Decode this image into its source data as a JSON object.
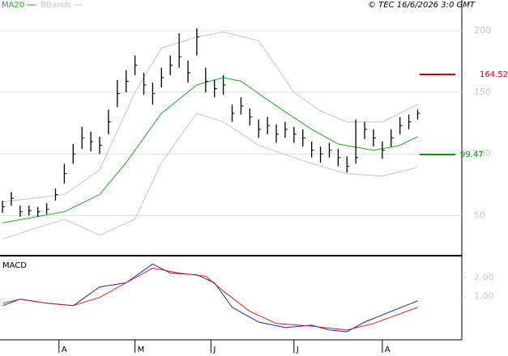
{
  "chart_data": [
    {
      "type": "ohlc",
      "credit": "© TEC 16/6/2026 3:0 GMT",
      "xlim": [
        -0.28,
        52
      ],
      "ylim": [
        18,
        225
      ],
      "yticks": [
        200,
        150,
        100,
        50
      ],
      "grid": true,
      "xticks": [
        {
          "value": 6.4,
          "label": "A"
        },
        {
          "value": 15,
          "label": "M"
        },
        {
          "value": 23.6,
          "label": "J"
        },
        {
          "value": 33,
          "label": "J"
        },
        {
          "value": 43,
          "label": "A"
        }
      ],
      "close": [
        57,
        64,
        53,
        54,
        53,
        55,
        67,
        84,
        100,
        113,
        110,
        107,
        126,
        149,
        159,
        172,
        156,
        149,
        162,
        172,
        179,
        166,
        195,
        159,
        153,
        156,
        133,
        139,
        130,
        120,
        123,
        116,
        120,
        116,
        113,
        103,
        100,
        103,
        97,
        90,
        97,
        120,
        113,
        103,
        113,
        123,
        126,
        133
      ],
      "high": [
        62,
        69,
        58,
        58,
        57,
        60,
        72,
        92,
        108,
        122,
        118,
        114,
        136,
        160,
        168,
        180,
        166,
        158,
        170,
        180,
        198,
        176,
        202,
        170,
        160,
        164,
        140,
        146,
        137,
        128,
        130,
        124,
        126,
        122,
        120,
        110,
        106,
        109,
        104,
        98,
        128,
        126,
        120,
        110,
        120,
        130,
        132,
        136
      ],
      "low": [
        52,
        58,
        49,
        50,
        49,
        51,
        62,
        76,
        92,
        104,
        102,
        100,
        116,
        138,
        150,
        164,
        148,
        140,
        154,
        164,
        170,
        158,
        180,
        150,
        146,
        148,
        126,
        132,
        123,
        113,
        116,
        109,
        113,
        109,
        106,
        97,
        93,
        97,
        90,
        85,
        92,
        112,
        106,
        96,
        106,
        116,
        120,
        128
      ],
      "bar_color": "#000000",
      "series": [
        {
          "name": "MA20",
          "color": "#22aa22",
          "x": [
            0,
            7,
            11,
            14,
            18,
            22,
            25,
            27,
            31,
            35,
            38,
            42,
            45,
            47
          ],
          "values": [
            44,
            53,
            67,
            93,
            133,
            156,
            162,
            159,
            139,
            120,
            108,
            103,
            107,
            114
          ]
        },
        {
          "name": "BBands",
          "color": "#c4c4c4",
          "x": [
            0,
            7,
            11,
            15,
            18,
            22,
            25,
            29,
            33,
            36,
            39,
            43,
            47
          ],
          "upper": [
            61,
            67,
            87,
            150,
            186,
            195,
            199,
            192,
            150,
            135,
            126,
            126,
            140
          ],
          "lower": [
            31,
            47,
            34,
            47,
            93,
            133,
            126,
            107,
            97,
            90,
            84,
            82,
            89
          ]
        }
      ],
      "markers": [
        {
          "value": 164.52,
          "color": "#cc0000"
        },
        {
          "value": 99.47,
          "color": "#009900"
        }
      ]
    },
    {
      "type": "line",
      "title": "MACD",
      "xlim": [
        -0.28,
        52
      ],
      "ylim": [
        -1.3,
        3.1
      ],
      "yticks": [
        {
          "value": 2,
          "label": "2.00"
        },
        {
          "value": 1,
          "label": "1.00"
        }
      ],
      "series": [
        {
          "color": "#2222cc",
          "x": [
            0,
            2,
            5,
            8,
            11,
            14,
            17,
            19,
            22,
            24,
            26,
            29,
            32,
            35,
            37,
            39,
            41,
            44,
            47
          ],
          "values": [
            0.52,
            0.87,
            0.65,
            0.52,
            1.52,
            1.74,
            2.74,
            2.26,
            2.17,
            1.74,
            0.43,
            -0.35,
            -0.65,
            -0.52,
            -0.78,
            -0.87,
            -0.35,
            0.22,
            0.78
          ]
        },
        {
          "color": "#cc2222",
          "x": [
            0,
            2,
            5,
            8,
            11,
            14,
            17,
            20,
            23,
            25,
            28,
            31,
            35,
            39,
            42,
            47
          ],
          "values": [
            0.65,
            0.87,
            0.65,
            0.52,
            0.96,
            1.74,
            2.52,
            2.26,
            2.09,
            1.3,
            0.22,
            -0.43,
            -0.57,
            -0.78,
            -0.43,
            0.43
          ]
        }
      ]
    }
  ]
}
